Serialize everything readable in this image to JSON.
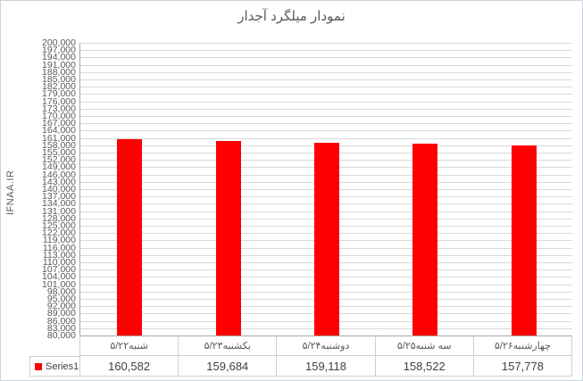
{
  "chart_data": {
    "type": "bar",
    "title": "نمودار میلگرد آجدار",
    "ylabel": "IFNAA.IR",
    "xlabel": "",
    "categories": [
      "شنبه۵/۲۲",
      "یکشنبه۵/۲۳",
      "دوشنبه۵/۲۴",
      "سه شنبه۵/۲۵",
      "چهارشنبه۵/۲۶"
    ],
    "series": [
      {
        "name": "Series1",
        "color": "#FF0000",
        "values": [
          160582,
          159684,
          159118,
          158522,
          157778
        ]
      }
    ],
    "ylim": [
      80000,
      200000
    ],
    "ytick_step": 3000,
    "grid": true,
    "legend_position": "bottom-left-table",
    "data_table_shown": true
  },
  "colors": {
    "bar": "#FF0000",
    "gridline": "#D9D9D9",
    "axis_line": "#A6A6A6",
    "table_border": "#CBD0D6",
    "tick_text": "#595959",
    "category_text": "#595959",
    "value_text": "#3F3F3F",
    "title_text": "#595959",
    "frame_border": "#C9D3DF",
    "background": "#FFFFFF"
  }
}
